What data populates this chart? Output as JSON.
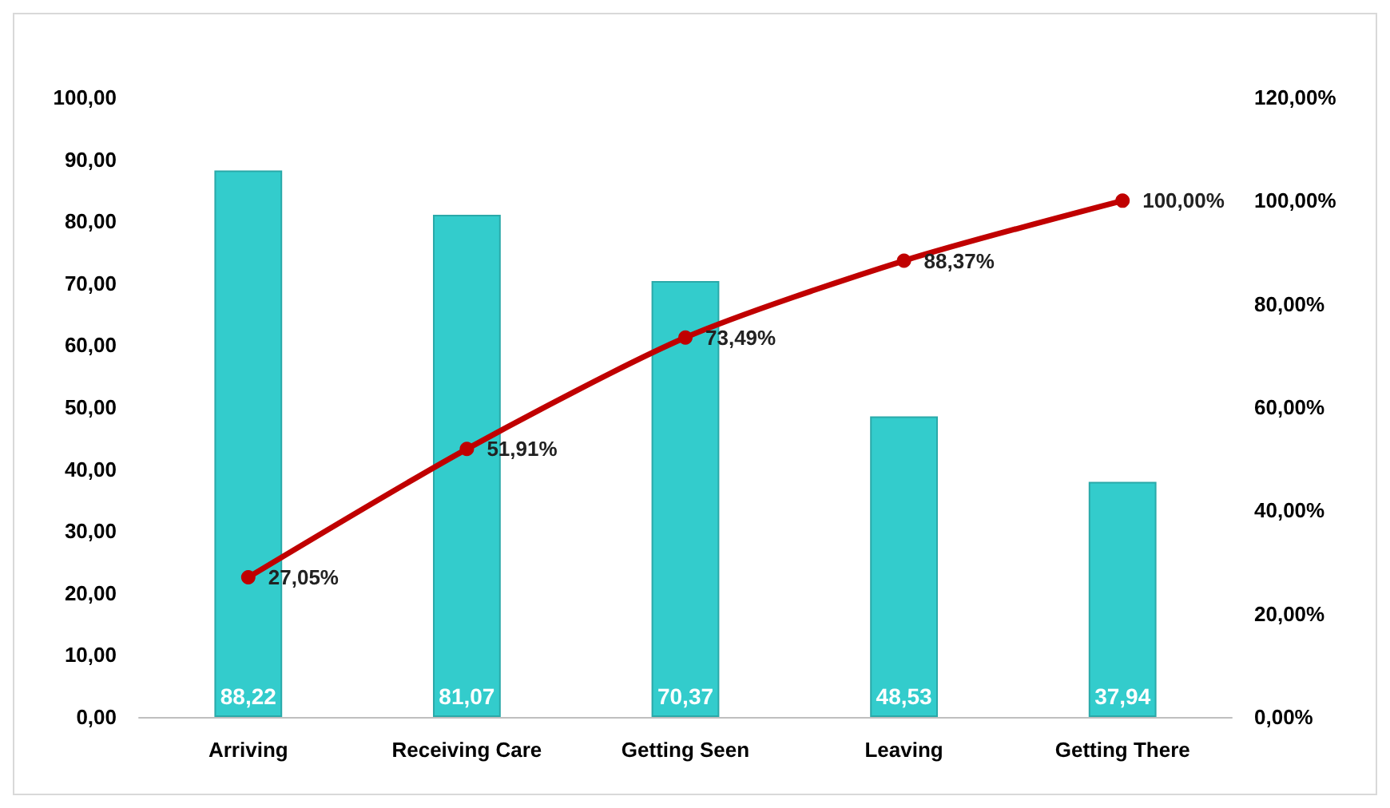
{
  "chart_data": {
    "type": "bar",
    "categories": [
      "Arriving",
      "Receiving Care",
      "Getting Seen",
      "Leaving",
      "Getting There"
    ],
    "series": [
      {
        "color": "#33cccc",
        "values": [
          88.22,
          81.07,
          70.37,
          48.53,
          37.94
        ],
        "value_labels": [
          "88,22",
          "81,07",
          "70,37",
          "48,53",
          "37,94"
        ]
      },
      {
        "type": "line",
        "axis": "y2",
        "color": "#c00000",
        "marker": "circle",
        "values": [
          27.05,
          51.91,
          73.49,
          88.37,
          100
        ],
        "value_labels": [
          "27,05%",
          "51,91%",
          "73,49%",
          "88,37%",
          "100,00%"
        ]
      }
    ],
    "ylim": [
      0,
      100
    ],
    "yticks": [
      {
        "value": 0,
        "label": "0,00"
      },
      {
        "value": 10,
        "label": "10,00"
      },
      {
        "value": 20,
        "label": "20,00"
      },
      {
        "value": 30,
        "label": "30,00"
      },
      {
        "value": 40,
        "label": "40,00"
      },
      {
        "value": 50,
        "label": "50,00"
      },
      {
        "value": 60,
        "label": "60,00"
      },
      {
        "value": 70,
        "label": "70,00"
      },
      {
        "value": 80,
        "label": "80,00"
      },
      {
        "value": 90,
        "label": "90,00"
      },
      {
        "value": 100,
        "label": "100,00"
      }
    ],
    "y2lim": [
      0,
      120
    ],
    "y2ticks": [
      {
        "value": 0,
        "label": "0,00%"
      },
      {
        "value": 20,
        "label": "20,00%"
      },
      {
        "value": 40,
        "label": "40,00%"
      },
      {
        "value": 60,
        "label": "60,00%"
      },
      {
        "value": 80,
        "label": "80,00%"
      },
      {
        "value": 100,
        "label": "100,00%"
      },
      {
        "value": 120,
        "label": "120,00%"
      }
    ],
    "grid": false
  }
}
